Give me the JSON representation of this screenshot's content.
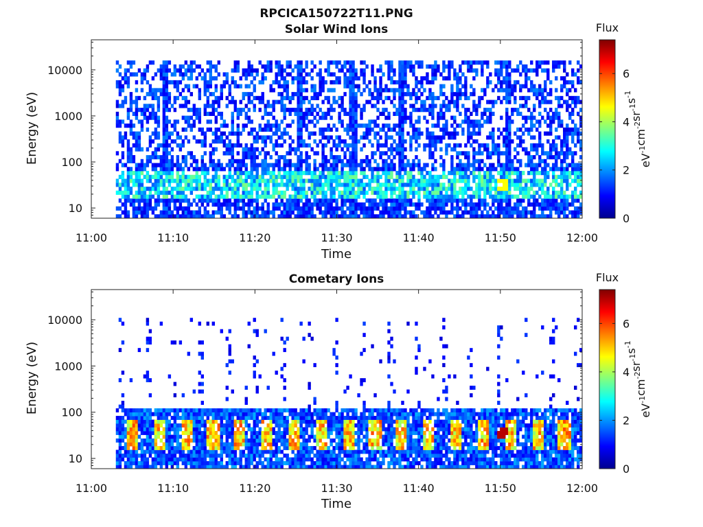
{
  "figure_title": "RPCICA150722T11.PNG",
  "colorbar": {
    "title": "Flux",
    "label_base": "eV",
    "label_exponents": [
      "-1",
      "-2",
      "-1",
      "-1"
    ],
    "label_units": [
      "cm",
      "sr",
      "s"
    ],
    "range": [
      0,
      7.4
    ],
    "ticks": [
      0,
      2,
      4,
      6
    ],
    "colormap": "jet",
    "colors": [
      "#00008f",
      "#0000ff",
      "#0080ff",
      "#00ffff",
      "#80ff80",
      "#ffff00",
      "#ff8000",
      "#ff0000",
      "#800000"
    ]
  },
  "chart_data": [
    {
      "type": "heatmap",
      "title": "Solar Wind Ions",
      "xlabel": "Time",
      "ylabel": "Energy (eV)",
      "x_ticks": [
        "11:00",
        "11:10",
        "11:20",
        "11:30",
        "11:40",
        "11:50",
        "12:00"
      ],
      "x_range": [
        "11:00",
        "12:00"
      ],
      "y_scale": "log",
      "y_ticks": [
        10,
        100,
        1000,
        10000
      ],
      "y_range": [
        6,
        45000
      ],
      "colorbar_label": "Flux",
      "data_start": "11:03",
      "data_end": "12:00",
      "description": "Sparse low-flux (1-3) noise across 10 eV - 15 keV with strongest ~3-5 flux near 20-40 eV; vertical streaks near 11:09, 11:25, 11:32, 11:38, 11:51; peak ~4.5 near 11:50 at ~35 eV"
    },
    {
      "type": "heatmap",
      "title": "Cometary Ions",
      "xlabel": "Time",
      "ylabel": "Energy (eV)",
      "x_ticks": [
        "11:00",
        "11:10",
        "11:20",
        "11:30",
        "11:40",
        "11:50",
        "12:00"
      ],
      "x_range": [
        "11:00",
        "12:00"
      ],
      "y_scale": "log",
      "y_ticks": [
        10,
        100,
        1000,
        10000
      ],
      "y_range": [
        6,
        45000
      ],
      "colorbar_label": "Flux",
      "data_start": "11:03",
      "data_end": "12:00",
      "description": "Dense band 10-120 eV with repeating ~3-minute bursts of 5-6 flux peaking at ~25-40 eV; strongest ~7 near 11:50; sparse speckles 200 eV - 10 keV in vertical columns"
    }
  ]
}
